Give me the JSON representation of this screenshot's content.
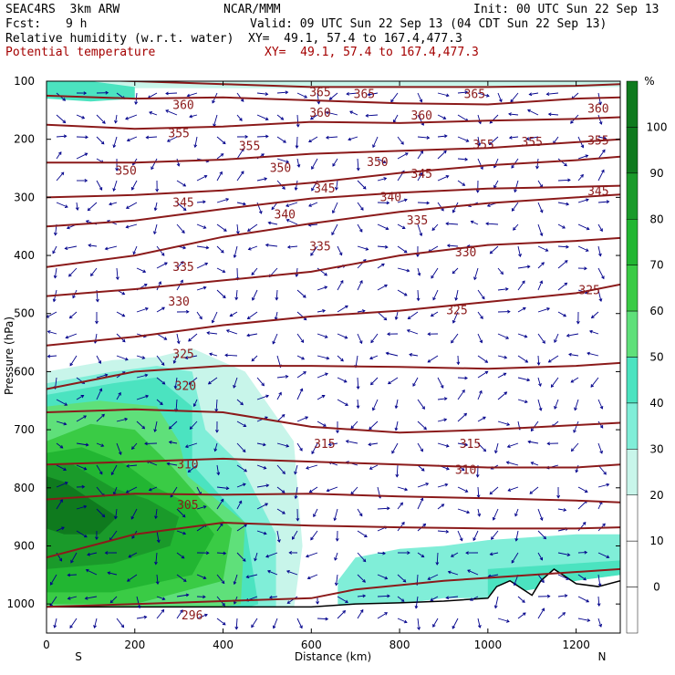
{
  "header": {
    "model": "SEAC4RS  3km ARW",
    "org": "NCAR/MMM",
    "init": "Init: 00 UTC Sun 22 Sep 13",
    "fcst_label": "Fcst:",
    "fcst_value": "9 h",
    "valid": "Valid: 09 UTC Sun 22 Sep 13 (04 CDT Sun 22 Sep 13)",
    "field1": "Relative humidity (w.r.t. water)",
    "field1_xy": "XY=  49.1, 57.4 to 167.4,477.3",
    "field2": "Potential temperature",
    "field2_xy": "XY=  49.1, 57.4 to 167.4,477.3"
  },
  "colors": {
    "theta": "#8b1a1a",
    "wind": "#00008b",
    "rh30": "#c8f5ea",
    "rh40": "#80eed8",
    "rh50": "#4be3c0",
    "rh60": "#5fe07a",
    "rh70": "#3acb45",
    "rh80": "#22b632",
    "rh90": "#1a9a2a",
    "rh100": "#0f7a1e"
  },
  "chart_data": {
    "type": "contour",
    "xlabel": "Distance (km)",
    "ylabel": "Pressure (hPa)",
    "xlim": [
      0,
      1300
    ],
    "ylim": [
      1050,
      100
    ],
    "x_ticks": [
      0,
      200,
      400,
      600,
      800,
      1000,
      1200
    ],
    "y_ticks": [
      100,
      200,
      300,
      400,
      500,
      600,
      700,
      800,
      900,
      1000
    ],
    "x_end_labels": {
      "left": "S",
      "right": "N"
    },
    "colorbar": {
      "unit": "%",
      "ticks": [
        0,
        10,
        20,
        30,
        40,
        50,
        60,
        70,
        80,
        90,
        100
      ],
      "levels": [
        30,
        40,
        50,
        60,
        70,
        80,
        90,
        100
      ]
    },
    "theta_contours": [
      {
        "label": "365",
        "x": [
          0,
          200,
          400,
          600,
          800,
          1000,
          1200,
          1300
        ],
        "p": [
          95,
          100,
          105,
          110,
          110,
          110,
          108,
          105
        ]
      },
      {
        "label": "360",
        "x": [
          0,
          200,
          400,
          600,
          800,
          1000,
          1200,
          1300
        ],
        "p": [
          125,
          130,
          128,
          133,
          138,
          140,
          130,
          128
        ]
      },
      {
        "label": "355",
        "x": [
          0,
          200,
          400,
          600,
          800,
          1000,
          1200,
          1300
        ],
        "p": [
          175,
          182,
          178,
          170,
          172,
          168,
          165,
          162
        ]
      },
      {
        "label": "350",
        "x": [
          0,
          200,
          400,
          600,
          800,
          1000,
          1200,
          1300
        ],
        "p": [
          240,
          240,
          235,
          225,
          220,
          215,
          205,
          200
        ]
      },
      {
        "label": "345",
        "x": [
          0,
          200,
          400,
          600,
          800,
          1000,
          1200,
          1300
        ],
        "p": [
          300,
          296,
          288,
          275,
          258,
          245,
          236,
          230
        ]
      },
      {
        "label": "340",
        "x": [
          0,
          200,
          400,
          600,
          800,
          1000,
          1200,
          1300
        ],
        "p": [
          350,
          340,
          320,
          302,
          292,
          285,
          282,
          280
        ]
      },
      {
        "label": "335",
        "x": [
          0,
          200,
          400,
          600,
          800,
          1000,
          1200,
          1300
        ],
        "p": [
          420,
          400,
          368,
          345,
          325,
          310,
          300,
          295
        ]
      },
      {
        "label": "330",
        "x": [
          0,
          200,
          400,
          600,
          800,
          1000,
          1200,
          1300
        ],
        "p": [
          470,
          458,
          443,
          428,
          400,
          382,
          375,
          370
        ]
      },
      {
        "label": "325",
        "x": [
          0,
          200,
          400,
          600,
          800,
          1000,
          1200,
          1300
        ],
        "p": [
          555,
          540,
          520,
          505,
          495,
          480,
          465,
          450
        ]
      },
      {
        "label": "320",
        "x": [
          0,
          200,
          400,
          600,
          800,
          1000,
          1200,
          1300
        ],
        "p": [
          630,
          600,
          590,
          590,
          592,
          595,
          590,
          585
        ]
      },
      {
        "label": "315",
        "x": [
          0,
          200,
          400,
          600,
          800,
          1000,
          1200,
          1300
        ],
        "p": [
          670,
          665,
          670,
          695,
          705,
          700,
          692,
          688
        ]
      },
      {
        "label": "310",
        "x": [
          0,
          200,
          400,
          600,
          800,
          1000,
          1200,
          1300
        ],
        "p": [
          760,
          755,
          750,
          755,
          760,
          765,
          765,
          760
        ]
      },
      {
        "label": "305",
        "x": [
          0,
          200,
          400,
          600,
          800,
          1000,
          1200,
          1300
        ],
        "p": [
          820,
          810,
          812,
          810,
          815,
          818,
          822,
          825
        ]
      },
      {
        "label": "300",
        "x": [
          0,
          200,
          400,
          600,
          800,
          1000,
          1200,
          1300
        ],
        "p": [
          920,
          880,
          860,
          865,
          868,
          870,
          870,
          868
        ]
      },
      {
        "label": "296",
        "x": [
          0,
          200,
          400,
          600,
          700,
          900,
          1100,
          1300
        ],
        "p": [
          1005,
          1000,
          995,
          990,
          975,
          960,
          950,
          940
        ]
      }
    ],
    "theta_label_positions": [
      {
        "label": "365",
        "x": 620,
        "p": 120
      },
      {
        "label": "365",
        "x": 720,
        "p": 123
      },
      {
        "label": "365",
        "x": 970,
        "p": 123
      },
      {
        "label": "360",
        "x": 310,
        "p": 142
      },
      {
        "label": "360",
        "x": 620,
        "p": 155
      },
      {
        "label": "360",
        "x": 850,
        "p": 160
      },
      {
        "label": "360",
        "x": 1250,
        "p": 148
      },
      {
        "label": "355",
        "x": 300,
        "p": 190
      },
      {
        "label": "355",
        "x": 460,
        "p": 212
      },
      {
        "label": "355",
        "x": 990,
        "p": 210
      },
      {
        "label": "355",
        "x": 1100,
        "p": 205
      },
      {
        "label": "355",
        "x": 1250,
        "p": 203
      },
      {
        "label": "350",
        "x": 180,
        "p": 255
      },
      {
        "label": "350",
        "x": 530,
        "p": 250
      },
      {
        "label": "350",
        "x": 750,
        "p": 240
      },
      {
        "label": "345",
        "x": 310,
        "p": 310
      },
      {
        "label": "345",
        "x": 630,
        "p": 285
      },
      {
        "label": "345",
        "x": 850,
        "p": 260
      },
      {
        "label": "345",
        "x": 1250,
        "p": 290
      },
      {
        "label": "340",
        "x": 540,
        "p": 330
      },
      {
        "label": "340",
        "x": 780,
        "p": 300
      },
      {
        "label": "335",
        "x": 310,
        "p": 420
      },
      {
        "label": "335",
        "x": 620,
        "p": 385
      },
      {
        "label": "335",
        "x": 840,
        "p": 340
      },
      {
        "label": "330",
        "x": 300,
        "p": 480
      },
      {
        "label": "330",
        "x": 950,
        "p": 395
      },
      {
        "label": "325",
        "x": 310,
        "p": 570
      },
      {
        "label": "325",
        "x": 930,
        "p": 495
      },
      {
        "label": "325",
        "x": 1230,
        "p": 460
      },
      {
        "label": "320",
        "x": 315,
        "p": 625
      },
      {
        "label": "315",
        "x": 630,
        "p": 725
      },
      {
        "label": "315",
        "x": 960,
        "p": 725
      },
      {
        "label": "310",
        "x": 320,
        "p": 760
      },
      {
        "label": "310",
        "x": 950,
        "p": 770
      },
      {
        "label": "305",
        "x": 320,
        "p": 830
      },
      {
        "label": "296",
        "x": 330,
        "p": 1020
      }
    ],
    "rh_regions": [
      {
        "level": 30,
        "x": [
          0,
          150,
          250,
          330,
          450,
          560,
          580,
          560,
          500,
          400,
          250,
          100,
          0
        ],
        "p": [
          600,
          580,
          575,
          560,
          600,
          720,
          900,
          1010,
          1020,
          1020,
          1020,
          1020,
          1000
        ]
      },
      {
        "level": 40,
        "x": [
          0,
          150,
          250,
          330,
          360,
          440,
          520,
          520,
          400,
          250,
          100,
          0
        ],
        "p": [
          620,
          600,
          590,
          600,
          700,
          760,
          880,
          1010,
          1020,
          1020,
          1020,
          1000
        ]
      },
      {
        "level": 50,
        "x": [
          0,
          150,
          250,
          330,
          330,
          450,
          480,
          400,
          250,
          0
        ],
        "p": [
          640,
          620,
          610,
          660,
          760,
          860,
          1000,
          1020,
          1020,
          1000
        ]
      },
      {
        "level": 60,
        "x": [
          0,
          120,
          250,
          300,
          320,
          450,
          440,
          300,
          0
        ],
        "p": [
          660,
          650,
          660,
          720,
          780,
          860,
          1000,
          1015,
          1005
        ]
      },
      {
        "level": 70,
        "x": [
          0,
          100,
          200,
          280,
          350,
          420,
          400,
          200,
          0
        ],
        "p": [
          720,
          690,
          700,
          760,
          820,
          870,
          960,
          1000,
          1000
        ]
      },
      {
        "level": 80,
        "x": [
          0,
          80,
          180,
          250,
          330,
          380,
          330,
          150,
          0
        ],
        "p": [
          740,
          730,
          760,
          800,
          830,
          880,
          950,
          980,
          980
        ]
      },
      {
        "level": 90,
        "x": [
          0,
          60,
          150,
          230,
          300,
          280,
          150,
          0
        ],
        "p": [
          760,
          760,
          800,
          820,
          850,
          900,
          930,
          940
        ]
      },
      {
        "level": 100,
        "x": [
          0,
          40,
          100,
          160,
          120,
          40,
          0
        ],
        "p": [
          780,
          790,
          820,
          850,
          880,
          880,
          870
        ]
      },
      {
        "level": 40,
        "x": [
          660,
          700,
          800,
          900,
          1000,
          1100,
          1200,
          1300,
          1300,
          1200,
          1100,
          1000,
          900,
          800,
          700,
          660
        ],
        "p": [
          960,
          920,
          905,
          900,
          890,
          885,
          880,
          880,
          950,
          960,
          975,
          990,
          990,
          1000,
          1005,
          1000
        ]
      },
      {
        "level": 50,
        "x": [
          1000,
          1100,
          1200,
          1300,
          1300,
          1200,
          1100,
          1000
        ],
        "p": [
          940,
          935,
          930,
          925,
          950,
          960,
          975,
          985
        ]
      },
      {
        "level": 30,
        "x": [
          0,
          200,
          400,
          600,
          800,
          1000,
          1200,
          1300,
          1300,
          1000,
          600,
          200,
          0
        ],
        "p": [
          100,
          100,
          100,
          100,
          100,
          100,
          100,
          100,
          110,
          112,
          112,
          112,
          115
        ]
      },
      {
        "level": 50,
        "x": [
          0,
          100,
          200,
          200,
          100,
          0
        ],
        "p": [
          100,
          100,
          110,
          130,
          135,
          130
        ]
      }
    ],
    "terrain": {
      "x": [
        0,
        400,
        600,
        700,
        800,
        900,
        1000,
        1020,
        1050,
        1080,
        1100,
        1120,
        1150,
        1180,
        1200,
        1250,
        1300
      ],
      "p": [
        1005,
        1005,
        1005,
        1000,
        998,
        995,
        990,
        970,
        960,
        975,
        985,
        960,
        940,
        955,
        965,
        970,
        960
      ]
    },
    "wind_vectors": "schematic grid of arrows over the cross-section"
  }
}
